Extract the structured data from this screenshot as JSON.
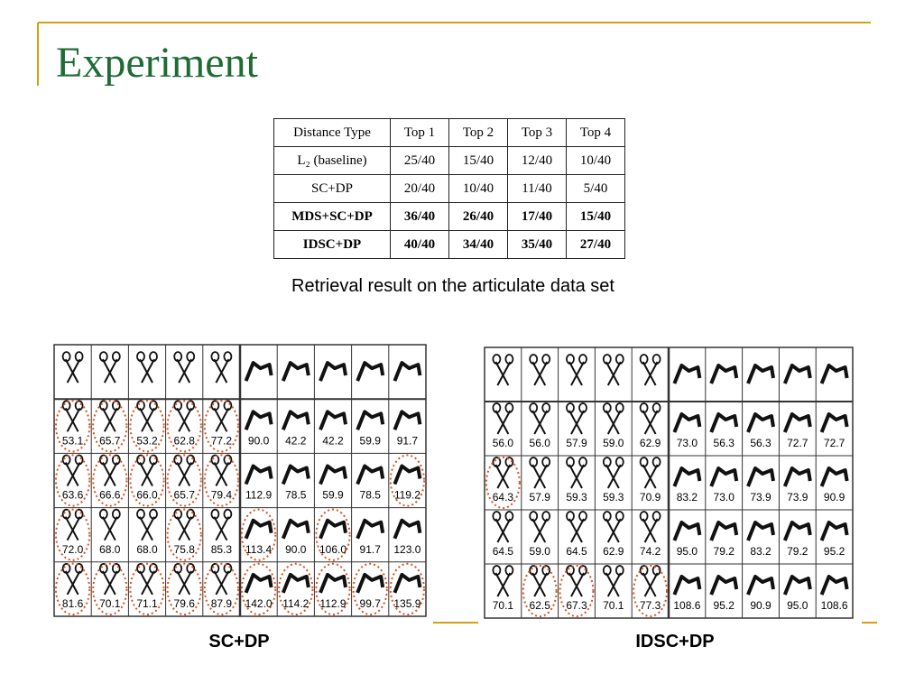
{
  "header": {
    "title": "Experiment"
  },
  "table": {
    "columns": [
      "Distance Type",
      "Top 1",
      "Top 2",
      "Top 3",
      "Top 4"
    ],
    "rows": [
      [
        "L₂ (baseline)",
        "25/40",
        "15/40",
        "12/40",
        "10/40"
      ],
      [
        "SC+DP",
        "20/40",
        "10/40",
        "11/40",
        "5/40"
      ],
      [
        "MDS+SC+DP",
        "36/40",
        "26/40",
        "17/40",
        "15/40"
      ],
      [
        "IDSC+DP",
        "40/40",
        "34/40",
        "35/40",
        "27/40"
      ]
    ]
  },
  "caption": "Retrieval result on the articulate data set",
  "grids": [
    {
      "label": "SC+DP",
      "rows": [
        [
          "53.1",
          "65.7",
          "53.2",
          "62.8",
          "77.2",
          "90.0",
          "42.2",
          "42.2",
          "59.9",
          "91.7"
        ],
        [
          "63.6",
          "66.6",
          "66.0",
          "65.7",
          "79.4",
          "112.9",
          "78.5",
          "59.9",
          "78.5",
          "119.2"
        ],
        [
          "72.0",
          "68.0",
          "68.0",
          "75.8",
          "85.3",
          "113.4",
          "90.0",
          "106.0",
          "91.7",
          "123.0"
        ],
        [
          "81.6",
          "70.1",
          "71.1",
          "79.6",
          "87.9",
          "142.0",
          "114.2",
          "112.9",
          "99.7",
          "135.9"
        ]
      ]
    },
    {
      "label": "IDSC+DP",
      "rows": [
        [
          "56.0",
          "56.0",
          "57.9",
          "59.0",
          "62.9",
          "73.0",
          "56.3",
          "56.3",
          "72.7",
          "72.7"
        ],
        [
          "64.3",
          "57.9",
          "59.3",
          "59.3",
          "70.9",
          "83.2",
          "73.0",
          "73.9",
          "73.9",
          "90.9"
        ],
        [
          "64.5",
          "59.0",
          "64.5",
          "62.9",
          "74.2",
          "95.0",
          "79.2",
          "83.2",
          "79.2",
          "95.2"
        ],
        [
          "70.1",
          "62.5",
          "67.3",
          "70.1",
          "77.3",
          "108.6",
          "95.2",
          "90.9",
          "95.0",
          "108.6"
        ]
      ]
    }
  ]
}
